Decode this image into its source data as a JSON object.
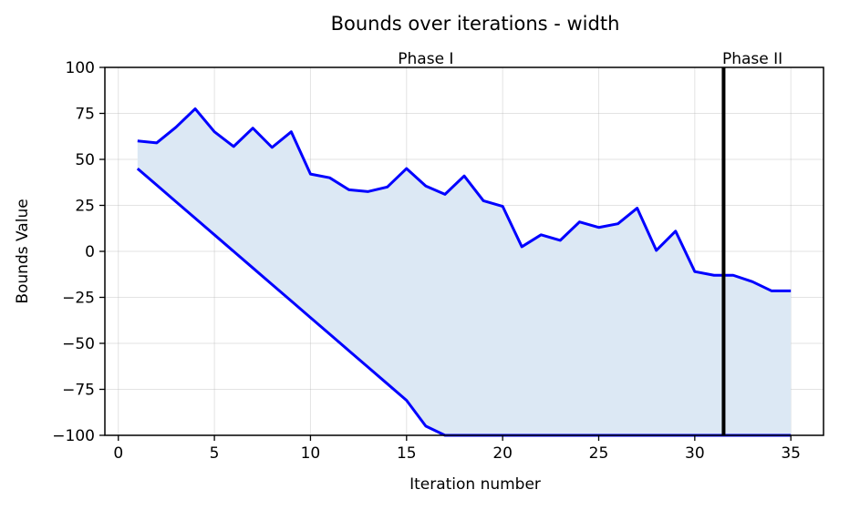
{
  "chart_data": {
    "type": "area",
    "title": "Bounds over iterations - width",
    "xlabel": "Iteration number",
    "ylabel": "Bounds Value",
    "xlim": [
      -0.7,
      36.7
    ],
    "ylim": [
      -100,
      100
    ],
    "xticks": [
      0,
      5,
      10,
      15,
      20,
      25,
      30,
      35
    ],
    "yticks": [
      100,
      75,
      50,
      25,
      0,
      -25,
      -50,
      -75,
      -100
    ],
    "ytick_labels": [
      "100",
      "75",
      "50",
      "25",
      "0",
      "−25",
      "−50",
      "−75",
      "−100"
    ],
    "grid": true,
    "x": [
      1,
      2,
      3,
      4,
      5,
      6,
      7,
      8,
      9,
      10,
      11,
      12,
      13,
      14,
      15,
      16,
      17,
      18,
      19,
      20,
      21,
      22,
      23,
      24,
      25,
      26,
      27,
      28,
      29,
      30,
      31,
      32,
      33,
      34,
      35
    ],
    "series": [
      {
        "role": "upper",
        "color": "#0000ff",
        "values": [
          60,
          59,
          67.5,
          77.5,
          65,
          57,
          67,
          56.5,
          65,
          42,
          40,
          33.5,
          32.5,
          35,
          45,
          35.5,
          31,
          41,
          27.5,
          24.5,
          2.5,
          9,
          6,
          16,
          13,
          15,
          23.5,
          0.5,
          11,
          -11,
          -13,
          -13,
          -16.5,
          -21.5,
          -21.5
        ]
      },
      {
        "role": "lower",
        "color": "#0000ff",
        "values": [
          45,
          36,
          27,
          18,
          9,
          0,
          -9,
          -18,
          -27,
          -36,
          -45,
          -54,
          -63,
          -72,
          -81,
          -95,
          -100,
          -100,
          -100,
          -100,
          -100,
          -100,
          -100,
          -100,
          -100,
          -100,
          -100,
          -100,
          -100,
          -100,
          -100,
          -100,
          -100,
          -100,
          -100
        ]
      }
    ],
    "fill_color": "#dce8f4",
    "phase_divider_x": 31.5,
    "phase_divider_color": "#000000",
    "annotations": [
      {
        "text": "Phase I",
        "x": 16
      },
      {
        "text": "Phase II",
        "x": 33
      }
    ]
  }
}
